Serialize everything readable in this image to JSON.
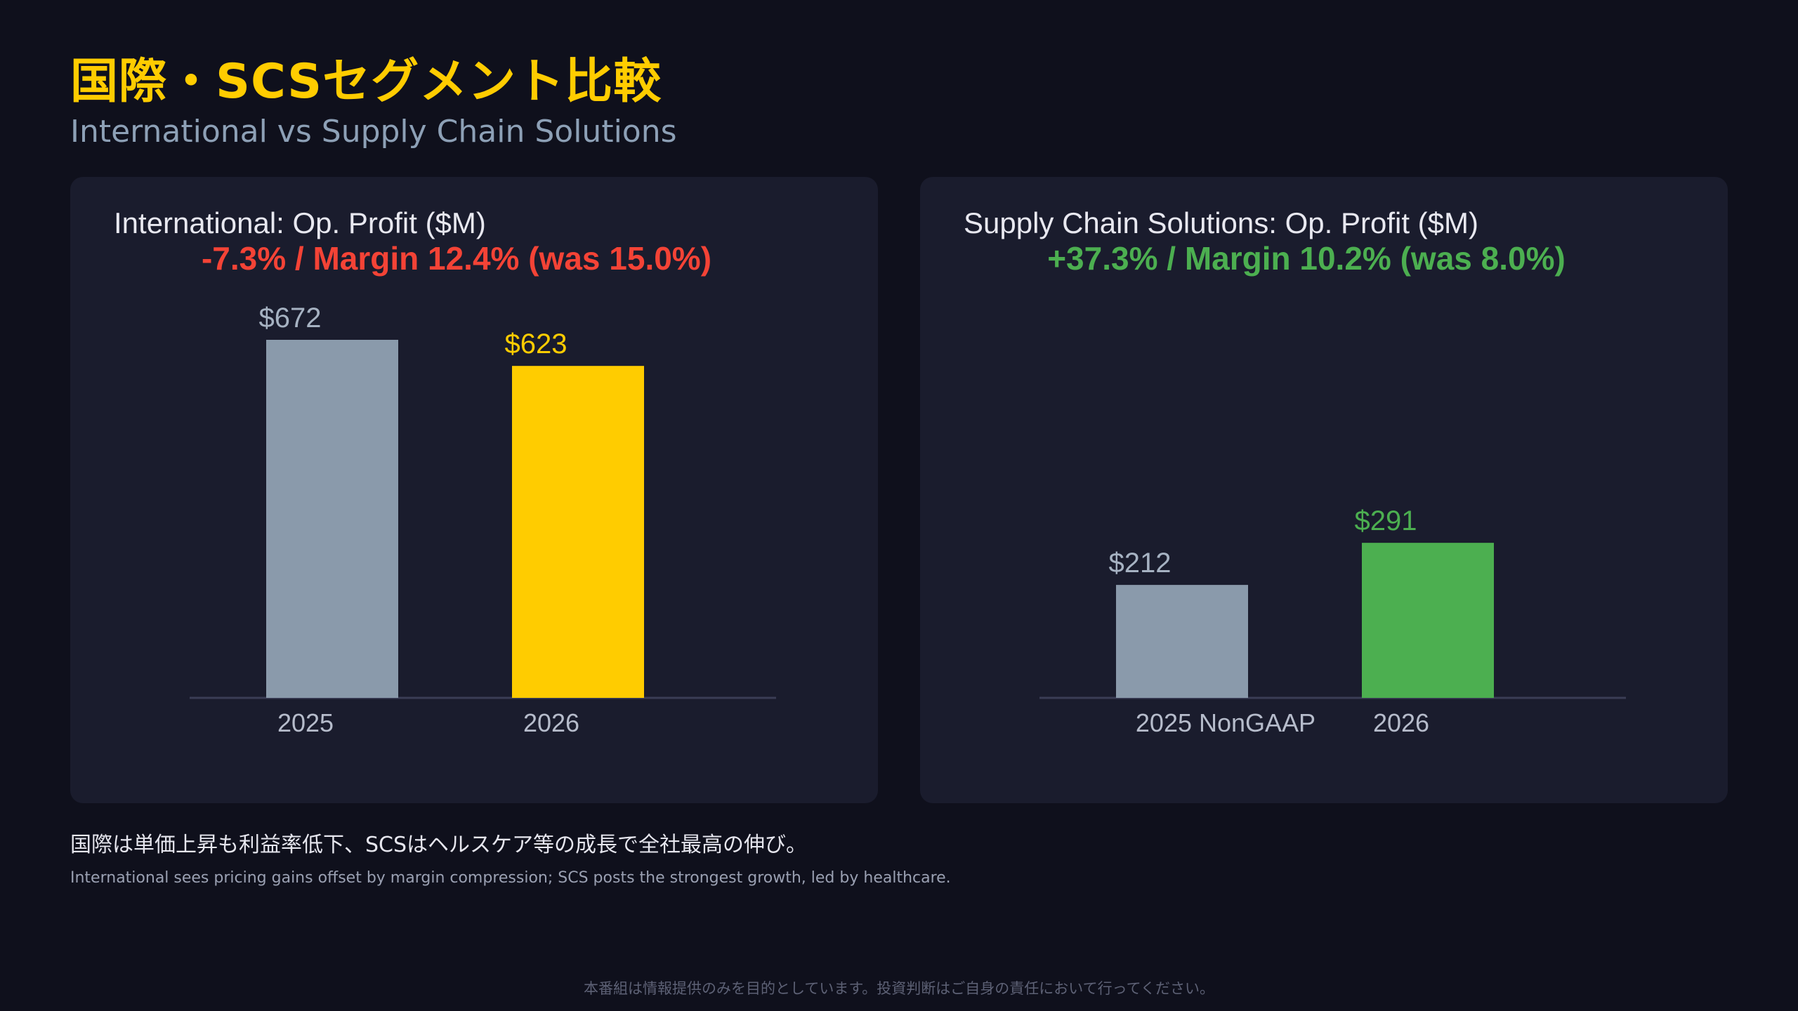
{
  "title": "国際・SCSセグメント比較",
  "subtitle": "International vs Supply Chain Solutions",
  "takeaway_ja": "国際は単価上昇も利益率低下、SCSはヘルスケア等の成長で全社最高の伸び。",
  "takeaway_en": "International sees pricing gains offset by margin compression; SCS posts the strongest growth, led by healthcare.",
  "disclaimer": "本番組は情報提供のみを目的としています。投資判断はご自身の責任において行ってください。",
  "colors": {
    "background": "#0f101c",
    "panel": "#1a1c2d",
    "title": "#ffcc00",
    "bar_prior": "#8a9aab",
    "international_accent": "#ffcc00",
    "scs_accent": "#4caf50",
    "negative": "#f44336",
    "positive": "#4caf50"
  },
  "chart_data": [
    {
      "type": "bar",
      "title": "International: Op. Profit ($M)",
      "subtitle": "-7.3% / Margin 12.4% (was 15.0%)",
      "subtitle_color": "#f44336",
      "categories": [
        "2025",
        "2026"
      ],
      "values": [
        672,
        623
      ],
      "value_labels": [
        "$672",
        "$623"
      ],
      "bar_colors": [
        "#8a9aab",
        "#ffcc00"
      ],
      "ylim": [
        0,
        672
      ],
      "grid": false
    },
    {
      "type": "bar",
      "title": "Supply Chain Solutions: Op. Profit ($M)",
      "subtitle": "+37.3% / Margin 10.2% (was 8.0%)",
      "subtitle_color": "#4caf50",
      "categories": [
        "2025 NonGAAP",
        "2026"
      ],
      "values": [
        212,
        291
      ],
      "value_labels": [
        "$212",
        "$291"
      ],
      "bar_colors": [
        "#8a9aab",
        "#4caf50"
      ],
      "ylim": [
        0,
        672
      ],
      "grid": false
    }
  ]
}
